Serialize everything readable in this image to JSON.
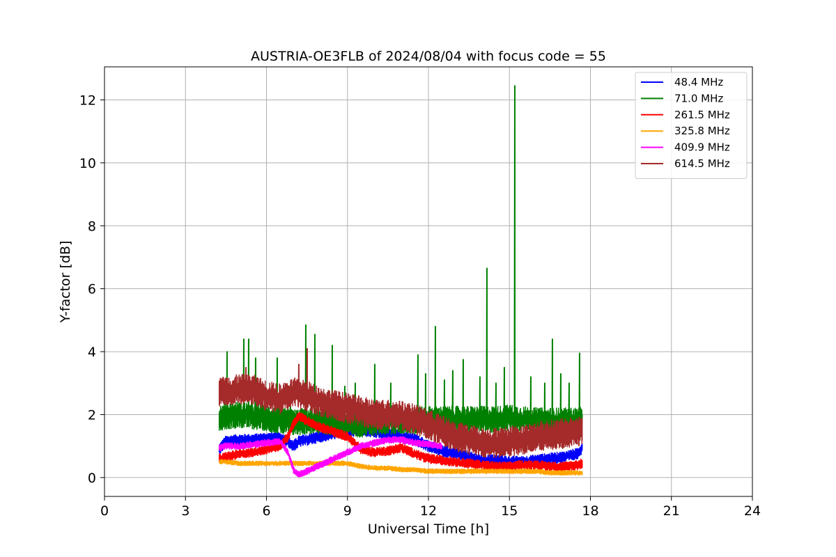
{
  "chart_data": {
    "type": "line",
    "title": "AUSTRIA-OE3FLB of 2024/08/04 with focus code = 55",
    "xlabel": "Universal Time [h]",
    "ylabel": "Y-factor [dB]",
    "xlim": [
      0,
      24
    ],
    "ylim": [
      -0.6,
      13.05
    ],
    "xticks": [
      0,
      3,
      6,
      9,
      12,
      15,
      18,
      21,
      24
    ],
    "yticks": [
      0,
      2,
      4,
      6,
      8,
      10,
      12
    ],
    "grid": true,
    "legend_position": "top-right",
    "series": [
      {
        "name": " 48.4 MHz",
        "color": "#0000ff",
        "x": [
          4.25,
          4.5,
          5.0,
          5.5,
          6.0,
          6.5,
          6.8,
          7.0,
          7.2,
          7.5,
          8.0,
          8.5,
          9.0,
          9.5,
          10.0,
          10.5,
          11.0,
          11.5,
          12.0,
          12.5,
          13.0,
          13.5,
          14.0,
          14.5,
          15.0,
          15.5,
          16.0,
          16.5,
          17.0,
          17.5,
          17.7
        ],
        "y": [
          0.9,
          1.15,
          1.2,
          1.2,
          1.25,
          1.25,
          1.15,
          1.0,
          1.15,
          1.2,
          1.3,
          1.4,
          1.45,
          1.5,
          1.45,
          1.4,
          1.3,
          1.2,
          1.0,
          0.85,
          0.75,
          0.65,
          0.55,
          0.55,
          0.5,
          0.5,
          0.55,
          0.6,
          0.65,
          0.75,
          0.95
        ],
        "noise": 0.12
      },
      {
        "name": " 71.0 MHz",
        "color": "#008000",
        "x": [
          4.25,
          4.5,
          5.0,
          5.5,
          6.0,
          6.5,
          7.0,
          7.5,
          8.0,
          8.5,
          9.0,
          9.5,
          10.0,
          10.5,
          11.0,
          11.5,
          12.0,
          12.5,
          13.0,
          13.5,
          14.0,
          14.5,
          15.0,
          15.5,
          16.0,
          16.5,
          17.0,
          17.5,
          17.7
        ],
        "y": [
          1.9,
          1.95,
          2.0,
          1.95,
          1.9,
          1.8,
          1.75,
          1.8,
          1.8,
          1.75,
          1.7,
          1.7,
          1.75,
          1.8,
          1.8,
          1.8,
          1.85,
          1.85,
          1.85,
          1.85,
          1.85,
          1.85,
          1.9,
          1.85,
          1.8,
          1.8,
          1.8,
          1.8,
          1.85
        ],
        "noise": 0.28,
        "spikes": [
          [
            15.2,
            12.45
          ],
          [
            14.18,
            6.65
          ],
          [
            7.45,
            4.85
          ],
          [
            12.25,
            4.8
          ],
          [
            7.8,
            4.55
          ],
          [
            5.35,
            4.4
          ],
          [
            16.6,
            4.4
          ],
          [
            5.15,
            4.4
          ],
          [
            8.45,
            4.2
          ],
          [
            17.6,
            3.95
          ],
          [
            4.55,
            4.0
          ],
          [
            11.6,
            3.9
          ],
          [
            6.4,
            3.8
          ],
          [
            5.6,
            3.8
          ],
          [
            13.3,
            3.75
          ],
          [
            10.0,
            3.6
          ],
          [
            14.8,
            3.5
          ],
          [
            12.9,
            3.4
          ],
          [
            15.8,
            3.2
          ],
          [
            11.9,
            3.3
          ],
          [
            9.3,
            3.0
          ],
          [
            16.3,
            3.0
          ],
          [
            13.9,
            3.2
          ],
          [
            17.2,
            3.0
          ],
          [
            10.6,
            3.0
          ],
          [
            8.9,
            2.9
          ],
          [
            6.9,
            2.9
          ],
          [
            12.6,
            3.1
          ],
          [
            14.5,
            3.0
          ],
          [
            16.9,
            3.3
          ]
        ]
      },
      {
        "name": " 261.5 MHz",
        "color": "#ff0000",
        "x": [
          4.25,
          4.5,
          5.0,
          5.5,
          6.0,
          6.5,
          6.8,
          7.0,
          7.2,
          7.5,
          8.0,
          8.5,
          9.0,
          9.5,
          10.0,
          10.5,
          11.0,
          11.5,
          12.0,
          12.5,
          13.0,
          13.5,
          14.0,
          14.5,
          15.0,
          15.5,
          16.0,
          16.5,
          17.0,
          17.5,
          17.7
        ],
        "y": [
          0.6,
          0.65,
          0.75,
          0.8,
          0.9,
          1.0,
          1.3,
          1.7,
          1.95,
          1.8,
          1.6,
          1.45,
          1.3,
          0.9,
          0.8,
          0.85,
          0.95,
          0.75,
          0.6,
          0.55,
          0.5,
          0.45,
          0.4,
          0.35,
          0.35,
          0.4,
          0.4,
          0.35,
          0.35,
          0.4,
          0.45
        ],
        "noise": 0.1
      },
      {
        "name": " 325.8 MHz",
        "color": "#ffa500",
        "x": [
          4.25,
          4.5,
          5.0,
          5.5,
          6.0,
          6.5,
          7.0,
          7.5,
          8.0,
          8.5,
          9.0,
          9.5,
          10.0,
          10.5,
          11.0,
          11.5,
          12.0,
          12.5,
          13.0,
          13.5,
          14.0,
          14.5,
          15.0,
          15.5,
          16.0,
          16.5,
          17.0,
          17.5,
          17.7
        ],
        "y": [
          0.5,
          0.5,
          0.45,
          0.45,
          0.45,
          0.45,
          0.45,
          0.45,
          0.45,
          0.45,
          0.45,
          0.35,
          0.3,
          0.3,
          0.25,
          0.25,
          0.2,
          0.2,
          0.2,
          0.2,
          0.2,
          0.2,
          0.2,
          0.2,
          0.2,
          0.15,
          0.15,
          0.15,
          0.15
        ],
        "noise": 0.05
      },
      {
        "name": " 409.9 MHz",
        "color": "#ff00ff",
        "x": [
          4.25,
          4.5,
          5.0,
          5.5,
          6.0,
          6.5,
          6.8,
          7.0,
          7.2,
          7.5,
          8.0,
          8.5,
          9.0,
          9.5,
          10.0,
          10.5,
          11.0,
          11.5,
          12.0,
          12.5
        ],
        "y": [
          0.95,
          1.0,
          1.0,
          1.05,
          1.1,
          1.15,
          0.8,
          0.25,
          0.1,
          0.2,
          0.4,
          0.6,
          0.8,
          1.0,
          1.1,
          1.2,
          1.2,
          1.1,
          1.05,
          1.0
        ],
        "noise": 0.07
      },
      {
        "name": " 614.5 MHz",
        "color": "#a52a2a",
        "x": [
          4.25,
          4.5,
          5.0,
          5.5,
          6.0,
          6.5,
          7.0,
          7.5,
          8.0,
          8.5,
          9.0,
          9.5,
          10.0,
          10.5,
          11.0,
          11.5,
          12.0,
          12.5,
          13.0,
          13.5,
          14.0,
          14.5,
          15.0,
          15.5,
          16.0,
          16.5,
          17.0,
          17.5,
          17.7
        ],
        "y": [
          2.7,
          2.75,
          2.8,
          2.8,
          2.6,
          2.5,
          2.7,
          2.6,
          2.4,
          2.3,
          2.2,
          2.1,
          2.0,
          2.0,
          1.95,
          1.85,
          1.7,
          1.5,
          1.3,
          1.2,
          1.1,
          1.1,
          1.15,
          1.2,
          1.3,
          1.35,
          1.4,
          1.45,
          1.5
        ],
        "noise": 0.32,
        "spikes": [
          [
            7.5,
            4.1
          ],
          [
            5.25,
            3.5
          ],
          [
            7.2,
            3.6
          ]
        ]
      }
    ]
  }
}
